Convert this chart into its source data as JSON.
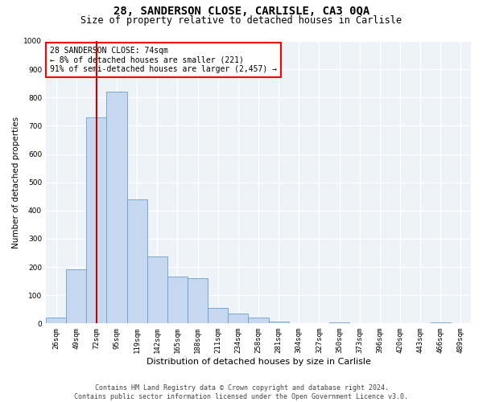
{
  "title_line1": "28, SANDERSON CLOSE, CARLISLE, CA3 0QA",
  "title_line2": "Size of property relative to detached houses in Carlisle",
  "xlabel": "Distribution of detached houses by size in Carlisle",
  "ylabel": "Number of detached properties",
  "footer_line1": "Contains HM Land Registry data © Crown copyright and database right 2024.",
  "footer_line2": "Contains public sector information licensed under the Open Government Licence v3.0.",
  "annotation_line1": "28 SANDERSON CLOSE: 74sqm",
  "annotation_line2": "← 8% of detached houses are smaller (221)",
  "annotation_line3": "91% of semi-detached houses are larger (2,457) →",
  "bar_color": "#c5d8f0",
  "bar_edge_color": "#6a9fcb",
  "vline_color": "#cc0000",
  "background_color": "#eef2f9",
  "grid_color": "#ffffff",
  "categories": [
    "26sqm",
    "49sqm",
    "72sqm",
    "95sqm",
    "119sqm",
    "142sqm",
    "165sqm",
    "188sqm",
    "211sqm",
    "234sqm",
    "258sqm",
    "281sqm",
    "304sqm",
    "327sqm",
    "350sqm",
    "373sqm",
    "396sqm",
    "420sqm",
    "443sqm",
    "466sqm",
    "489sqm"
  ],
  "values": [
    20,
    193,
    730,
    820,
    440,
    237,
    165,
    160,
    55,
    35,
    20,
    8,
    0,
    0,
    5,
    0,
    0,
    0,
    0,
    5,
    0
  ],
  "ylim": [
    0,
    1000
  ],
  "yticks": [
    0,
    100,
    200,
    300,
    400,
    500,
    600,
    700,
    800,
    900,
    1000
  ],
  "vline_x_index": 2,
  "title_fontsize": 10,
  "subtitle_fontsize": 8.5,
  "ylabel_fontsize": 7.5,
  "xlabel_fontsize": 8,
  "tick_fontsize": 6.5,
  "annotation_fontsize": 7,
  "footer_fontsize": 6
}
